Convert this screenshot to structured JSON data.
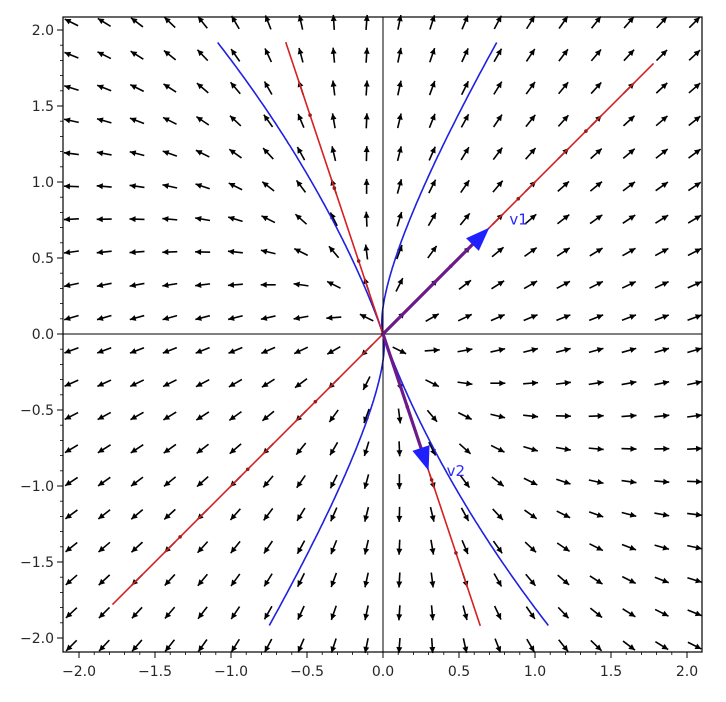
{
  "chart_data": {
    "type": "phase_portrait",
    "title": "",
    "xlabel": "",
    "ylabel": "",
    "xlim": [
      -2.1,
      2.1
    ],
    "ylim": [
      -2.1,
      2.1
    ],
    "xticks": [
      "−2.0",
      "−1.5",
      "−1.0",
      "−0.5",
      "0.0",
      "0.5",
      "1.0",
      "1.5",
      "2.0"
    ],
    "yticks": [
      "−2.0",
      "−1.5",
      "−1.0",
      "−0.5",
      "0.0",
      "0.5",
      "1.0",
      "1.5",
      "2.0"
    ],
    "xtick_values": [
      -2.0,
      -1.5,
      -1.0,
      -0.5,
      0.0,
      0.5,
      1.0,
      1.5,
      2.0
    ],
    "ytick_values": [
      -2.0,
      -1.5,
      -1.0,
      -0.5,
      0.0,
      0.5,
      1.0,
      1.5,
      2.0
    ],
    "grid": false,
    "vector_field": {
      "matrix": [
        [
          0.9,
          0.1
        ],
        [
          0.3,
          0.7
        ]
      ],
      "grid_n": 20,
      "range": [
        -2.05,
        2.05
      ],
      "color": "#000000"
    },
    "eigenvectors": [
      {
        "name": "v1",
        "x": 0.7,
        "y": 0.7,
        "label": "v1",
        "color": "#2020ff"
      },
      {
        "name": "v2",
        "x": 0.3,
        "y": -0.9,
        "label": "v2",
        "color": "#2020ff"
      }
    ],
    "eigenlines": [
      {
        "from": [
          -1.78,
          -1.78
        ],
        "to": [
          1.78,
          1.78
        ],
        "color": "#d62020"
      },
      {
        "from": [
          -0.64,
          1.92
        ],
        "to": [
          0.64,
          -1.92
        ],
        "color": "#d62020"
      }
    ],
    "trajectories_color": "#2020e0",
    "trajectories": [
      {
        "c1": 0.2,
        "c2": 0.55
      },
      {
        "c1": -0.2,
        "c2": -0.55
      },
      {
        "c1": 0.12,
        "c2": -0.08
      },
      {
        "c1": -0.12,
        "c2": 0.08
      }
    ],
    "axes_color": "#000000"
  }
}
